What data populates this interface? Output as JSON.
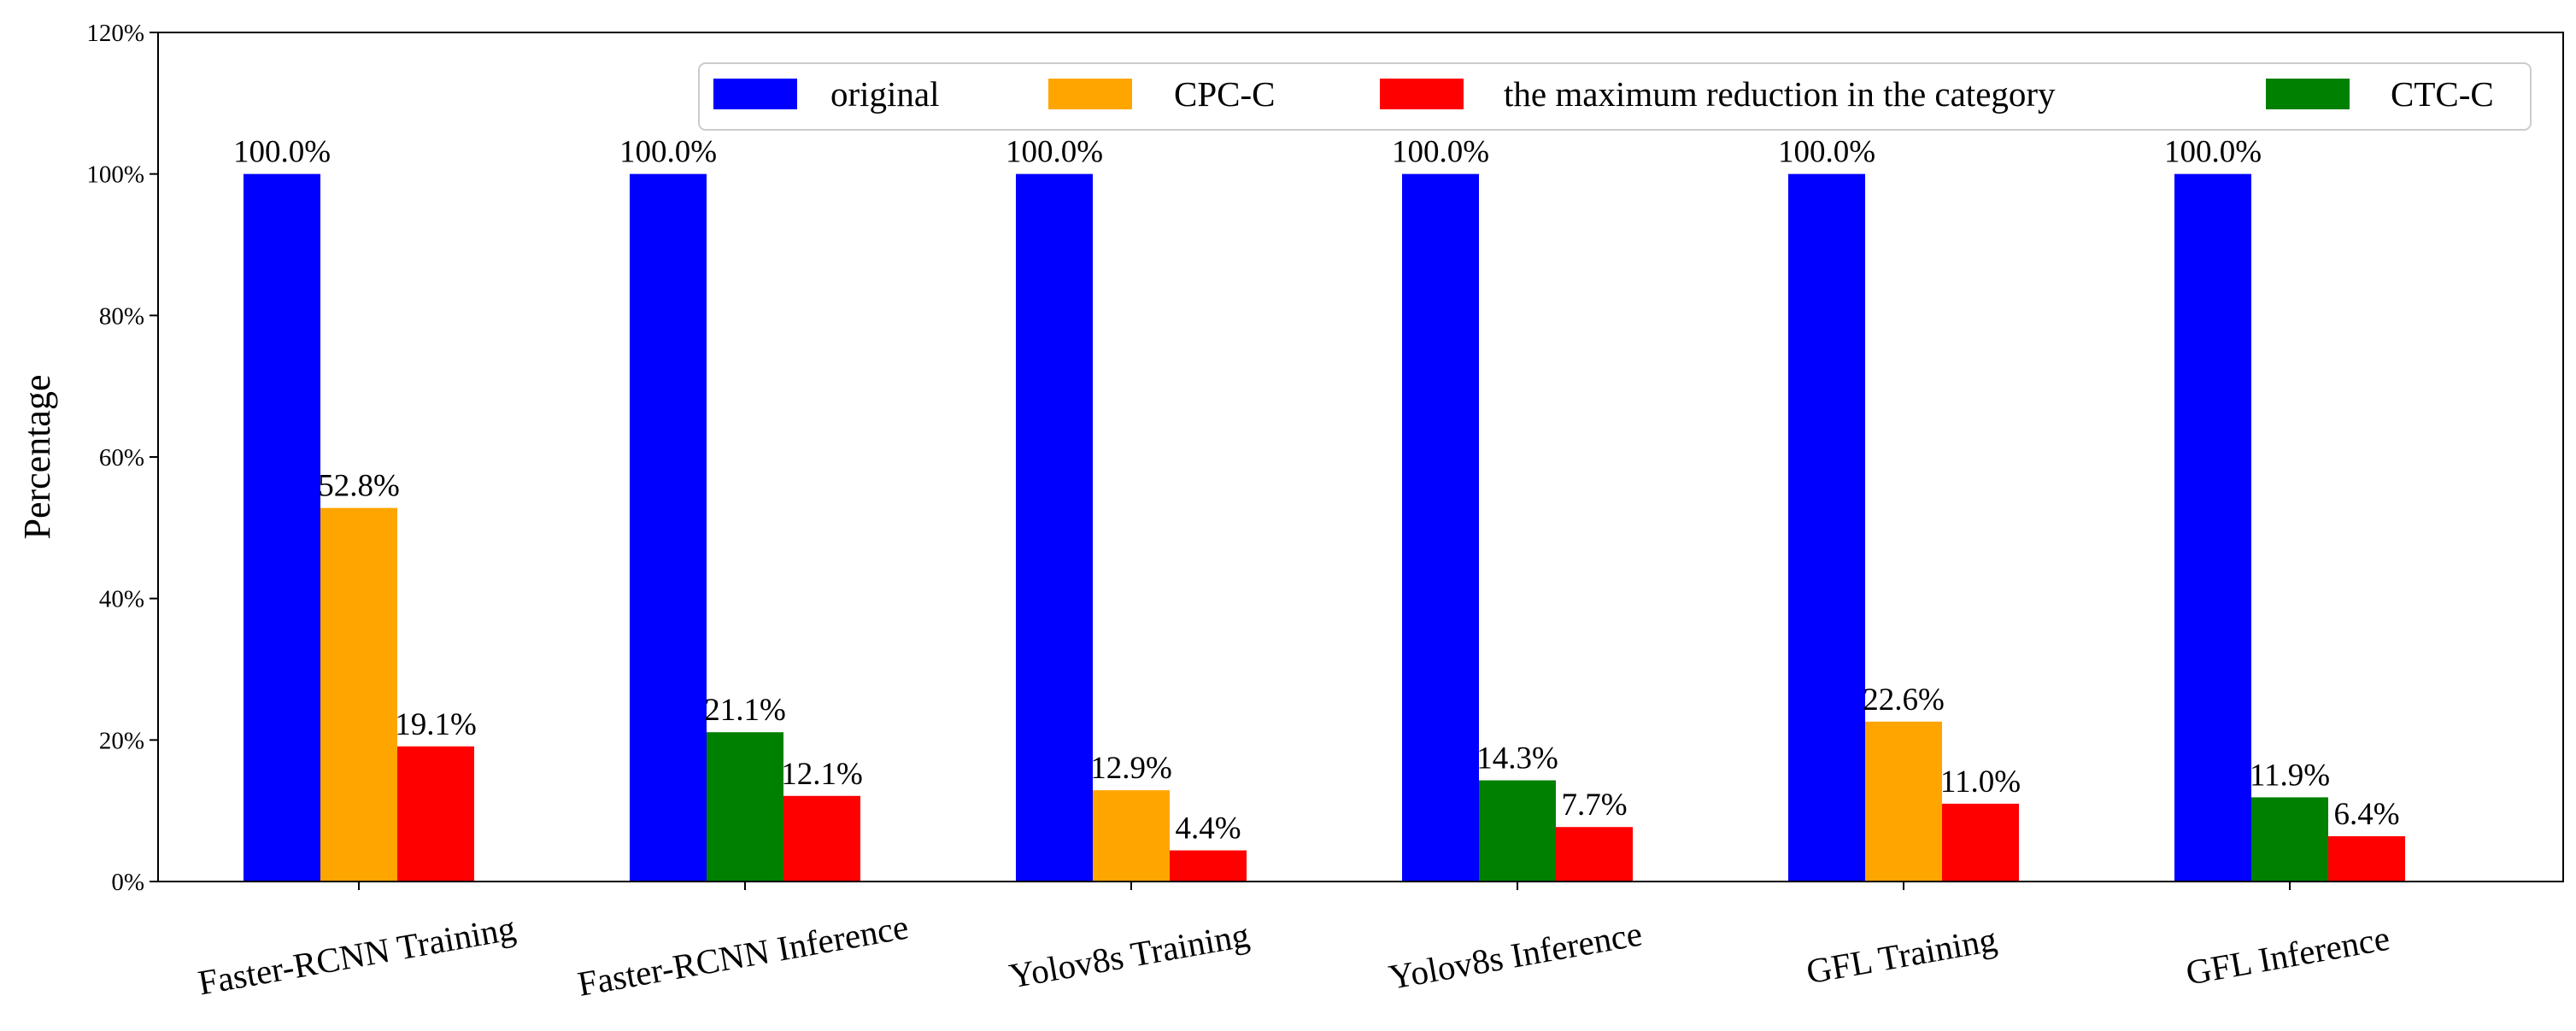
{
  "chart_data": {
    "type": "bar",
    "ylabel": "Percentage",
    "xlabel": "",
    "ylim": [
      0,
      120
    ],
    "y_ticks": [
      0,
      20,
      40,
      60,
      80,
      100,
      120
    ],
    "y_tick_labels": [
      "0%",
      "20%",
      "40%",
      "60%",
      "80%",
      "100%",
      "120%"
    ],
    "categories": [
      "Faster-RCNN Training",
      "Faster-RCNN Inference",
      "Yolov8s Training",
      "Yolov8s Inference",
      "GFL Training",
      "GFL Inference"
    ],
    "groups": [
      {
        "category": "Faster-RCNN Training",
        "bars": [
          {
            "series": "original",
            "value": 100.0,
            "label": "100.0%"
          },
          {
            "series": "CPC-C",
            "value": 52.8,
            "label": "52.8%"
          },
          {
            "series": "the maximum reduction in the category",
            "value": 19.1,
            "label": "19.1%"
          }
        ]
      },
      {
        "category": "Faster-RCNN Inference",
        "bars": [
          {
            "series": "original",
            "value": 100.0,
            "label": "100.0%"
          },
          {
            "series": "CTC-C",
            "value": 21.1,
            "label": "21.1%"
          },
          {
            "series": "the maximum reduction in the category",
            "value": 12.1,
            "label": "12.1%"
          }
        ]
      },
      {
        "category": "Yolov8s Training",
        "bars": [
          {
            "series": "original",
            "value": 100.0,
            "label": "100.0%"
          },
          {
            "series": "CPC-C",
            "value": 12.9,
            "label": "12.9%"
          },
          {
            "series": "the maximum reduction in the category",
            "value": 4.4,
            "label": "4.4%"
          }
        ]
      },
      {
        "category": "Yolov8s Inference",
        "bars": [
          {
            "series": "original",
            "value": 100.0,
            "label": "100.0%"
          },
          {
            "series": "CTC-C",
            "value": 14.3,
            "label": "14.3%"
          },
          {
            "series": "the maximum reduction in the category",
            "value": 7.7,
            "label": "7.7%"
          }
        ]
      },
      {
        "category": "GFL Training",
        "bars": [
          {
            "series": "original",
            "value": 100.0,
            "label": "100.0%"
          },
          {
            "series": "CPC-C",
            "value": 22.6,
            "label": "22.6%"
          },
          {
            "series": "the maximum reduction in the category",
            "value": 11.0,
            "label": "11.0%"
          }
        ]
      },
      {
        "category": "GFL Inference",
        "bars": [
          {
            "series": "original",
            "value": 100.0,
            "label": "100.0%"
          },
          {
            "series": "CTC-C",
            "value": 11.9,
            "label": "11.9%"
          },
          {
            "series": "the maximum reduction in the category",
            "value": 6.4,
            "label": "6.4%"
          }
        ]
      }
    ],
    "legend": [
      {
        "name": "original",
        "color": "#0000ff"
      },
      {
        "name": "CPC-C",
        "color": "#ffa500"
      },
      {
        "name": "the maximum reduction in the category",
        "color": "#ff0000"
      },
      {
        "name": "CTC-C",
        "color": "#008000"
      }
    ],
    "legend_position": "top-right",
    "grid": false
  }
}
